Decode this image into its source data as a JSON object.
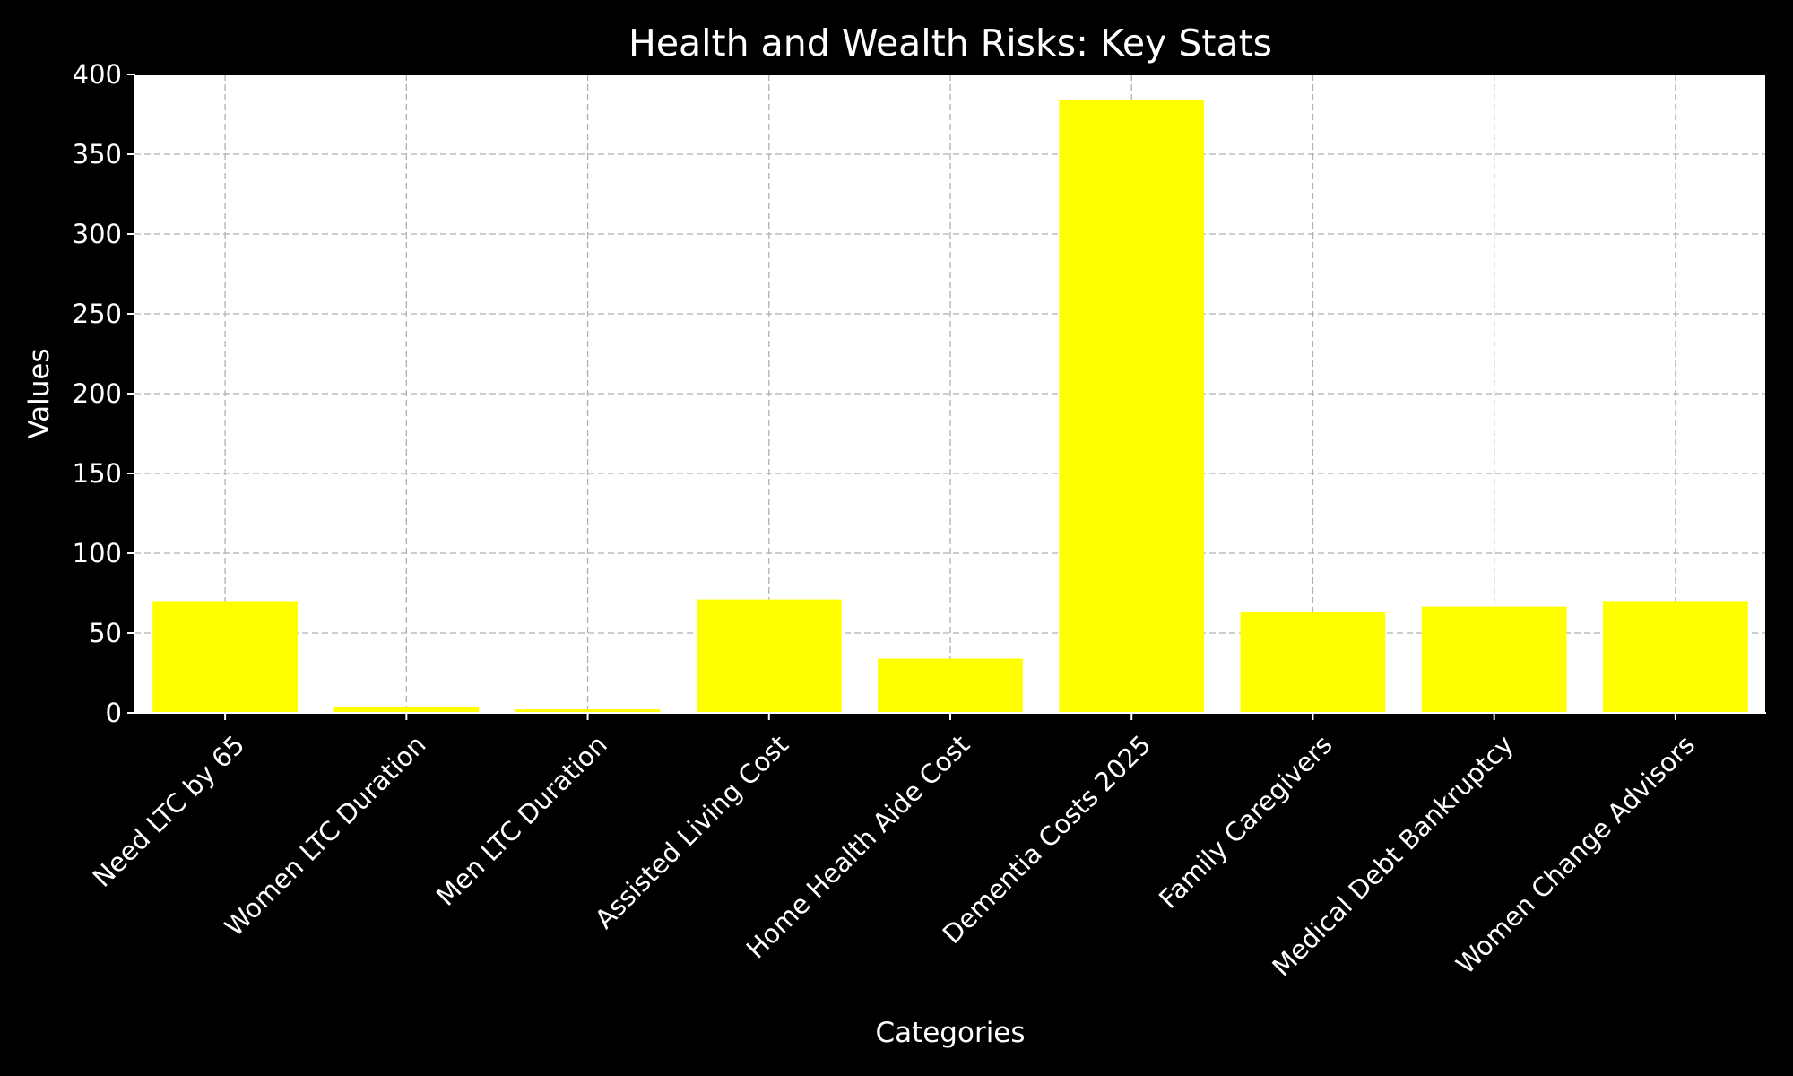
{
  "chart_data": {
    "type": "bar",
    "title": "Health and Wealth Risks: Key Stats",
    "xlabel": "Categories",
    "ylabel": "Values",
    "categories": [
      "Need LTC by 65",
      "Women LTC Duration",
      "Men LTC Duration",
      "Assisted Living Cost",
      "Home Health Aide Cost",
      "Dementia Costs 2025",
      "Family Caregivers",
      "Medical Debt Bankruptcy",
      "Women Change Advisors"
    ],
    "values": [
      70,
      3.7,
      2.2,
      71,
      34,
      384,
      63,
      66.5,
      70
    ],
    "ylim": [
      0,
      400
    ],
    "yticks": [
      0,
      50,
      100,
      150,
      200,
      250,
      300,
      350,
      400
    ],
    "grid": true,
    "legend": "none",
    "colors": {
      "bar": "#ffff00",
      "background": "#000000",
      "plot_background": "#ffffff",
      "grid": "#b0b0b0",
      "text": "#ffffff"
    }
  }
}
